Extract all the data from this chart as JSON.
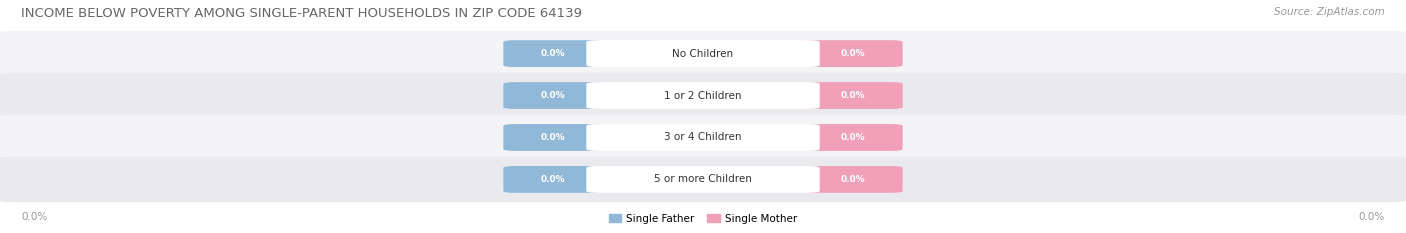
{
  "title": "INCOME BELOW POVERTY AMONG SINGLE-PARENT HOUSEHOLDS IN ZIP CODE 64139",
  "source": "Source: ZipAtlas.com",
  "categories": [
    "No Children",
    "1 or 2 Children",
    "3 or 4 Children",
    "5 or more Children"
  ],
  "father_values": [
    0.0,
    0.0,
    0.0,
    0.0
  ],
  "mother_values": [
    0.0,
    0.0,
    0.0,
    0.0
  ],
  "father_color": "#92b8d8",
  "mother_color": "#f0a0b8",
  "row_bg_color_odd": "#f4f4f6",
  "row_bg_color_even": "#eaeaee",
  "title_fontsize": 9.5,
  "source_fontsize": 7.5,
  "label_fontsize": 7.5,
  "value_fontsize": 6.5,
  "axis_label": "0.0%",
  "background_color": "#ffffff",
  "legend_father": "Single Father",
  "legend_mother": "Single Mother",
  "center_label_color": "#333333",
  "value_text_color": "#ffffff"
}
